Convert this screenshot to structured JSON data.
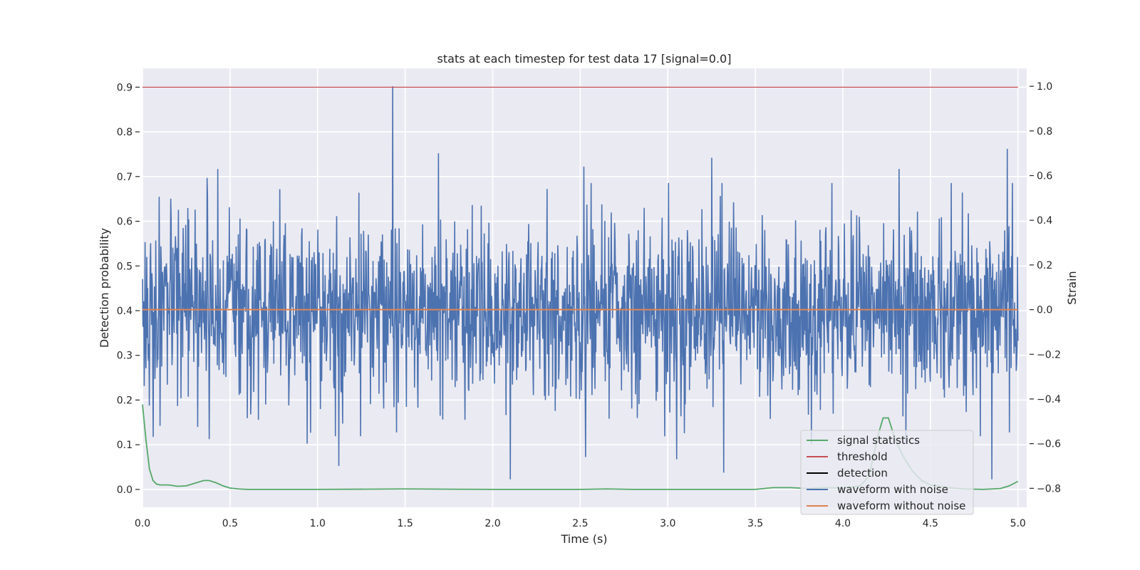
{
  "chart_data": {
    "type": "line",
    "title": "stats at each timestep for test data 17 [signal=0.0]",
    "xlabel": "Time (s)",
    "ylabel_left": "Detection probability",
    "ylabel_right": "Strain",
    "xlim": [
      0.0,
      5.05
    ],
    "ylim_left": [
      -0.04,
      0.942
    ],
    "ylim_right": [
      -0.885,
      1.08
    ],
    "x_ticks": [
      0.0,
      0.5,
      1.0,
      1.5,
      2.0,
      2.5,
      3.0,
      3.5,
      4.0,
      4.5,
      5.0
    ],
    "x_tick_labels": [
      "0.0",
      "0.5",
      "1.0",
      "1.5",
      "2.0",
      "2.5",
      "3.0",
      "3.5",
      "4.0",
      "4.5",
      "5.0"
    ],
    "y_left_ticks": [
      0.0,
      0.1,
      0.2,
      0.3,
      0.4,
      0.5,
      0.6,
      0.7,
      0.8,
      0.9
    ],
    "y_left_tick_labels": [
      "0.0",
      "0.1",
      "0.2",
      "0.3",
      "0.4",
      "0.5",
      "0.6",
      "0.7",
      "0.8",
      "0.9"
    ],
    "y_right_ticks": [
      -0.8,
      -0.6,
      -0.4,
      -0.2,
      0.0,
      0.2,
      0.4,
      0.6,
      0.8,
      1.0
    ],
    "y_right_tick_labels": [
      "−0.8",
      "−0.6",
      "−0.4",
      "−0.2",
      "0.0",
      "0.2",
      "0.4",
      "0.6",
      "0.8",
      "1.0"
    ],
    "grid": true,
    "legend_position": "lower-right",
    "legend": [
      {
        "label": "signal statistics",
        "color": "#55a868"
      },
      {
        "label": "threshold",
        "color": "#c44e52"
      },
      {
        "label": "detection",
        "color": "#000000"
      },
      {
        "label": "waveform with noise",
        "color": "#4c72b0"
      },
      {
        "label": "waveform without noise",
        "color": "#dd8452"
      }
    ],
    "series": [
      {
        "name": "signal statistics",
        "axis": "left",
        "color": "#55a868",
        "x": [
          0.0,
          0.02,
          0.04,
          0.06,
          0.08,
          0.1,
          0.15,
          0.2,
          0.25,
          0.3,
          0.35,
          0.38,
          0.42,
          0.46,
          0.5,
          0.55,
          0.6,
          1.0,
          1.5,
          2.0,
          2.5,
          2.65,
          2.8,
          3.0,
          3.5,
          3.6,
          3.7,
          3.8,
          3.9,
          4.0,
          4.1,
          4.15,
          4.2,
          4.23,
          4.26,
          4.3,
          4.35,
          4.4,
          4.45,
          4.5,
          4.6,
          4.7,
          4.8,
          4.9,
          4.95,
          5.0
        ],
        "values": [
          0.19,
          0.11,
          0.045,
          0.02,
          0.012,
          0.01,
          0.01,
          0.007,
          0.008,
          0.014,
          0.02,
          0.02,
          0.015,
          0.008,
          0.003,
          0.001,
          0.0,
          0.0,
          0.001,
          0.0,
          0.0,
          0.001,
          0.0,
          0.0,
          0.0,
          0.004,
          0.004,
          0.002,
          0.004,
          0.003,
          0.008,
          0.03,
          0.12,
          0.16,
          0.16,
          0.11,
          0.07,
          0.04,
          0.02,
          0.01,
          0.004,
          0.001,
          0.0,
          0.002,
          0.008,
          0.018
        ]
      },
      {
        "name": "threshold",
        "axis": "left",
        "color": "#c44e52",
        "x": [
          0.0,
          5.0
        ],
        "values": [
          0.9,
          0.9
        ]
      },
      {
        "name": "waveform with noise",
        "axis": "right",
        "color": "#4c72b0",
        "sample_count": 2048,
        "x_range": [
          0.0,
          5.0
        ],
        "envelope_typical": [
          -0.42,
          0.42
        ],
        "extreme_peaks": [
          {
            "x": 0.04,
            "y": -0.43
          },
          {
            "x": 0.06,
            "y": -0.57
          },
          {
            "x": 0.1,
            "y": -0.52
          },
          {
            "x": 0.37,
            "y": 0.59
          },
          {
            "x": 0.43,
            "y": 0.63
          },
          {
            "x": 0.38,
            "y": -0.58
          },
          {
            "x": 0.9,
            "y": 0.03
          },
          {
            "x": 0.94,
            "y": -0.6
          },
          {
            "x": 1.12,
            "y": -0.7
          },
          {
            "x": 1.43,
            "y": 1.0
          },
          {
            "x": 1.45,
            "y": -0.55
          },
          {
            "x": 1.69,
            "y": 0.7
          },
          {
            "x": 2.1,
            "y": -0.76
          },
          {
            "x": 2.52,
            "y": 0.64
          },
          {
            "x": 2.53,
            "y": -0.66
          },
          {
            "x": 2.87,
            "y": -0.03
          },
          {
            "x": 3.05,
            "y": -0.67
          },
          {
            "x": 3.25,
            "y": 0.68
          },
          {
            "x": 3.32,
            "y": -0.73
          },
          {
            "x": 3.82,
            "y": -0.6
          },
          {
            "x": 4.32,
            "y": 0.63
          },
          {
            "x": 4.36,
            "y": -0.6
          },
          {
            "x": 4.85,
            "y": -0.76
          },
          {
            "x": 4.94,
            "y": 0.72
          },
          {
            "x": 4.95,
            "y": -0.55
          }
        ]
      },
      {
        "name": "waveform without noise",
        "axis": "right",
        "color": "#dd8452",
        "x": [
          0.0,
          5.0
        ],
        "values": [
          0.0,
          0.0
        ]
      }
    ]
  }
}
